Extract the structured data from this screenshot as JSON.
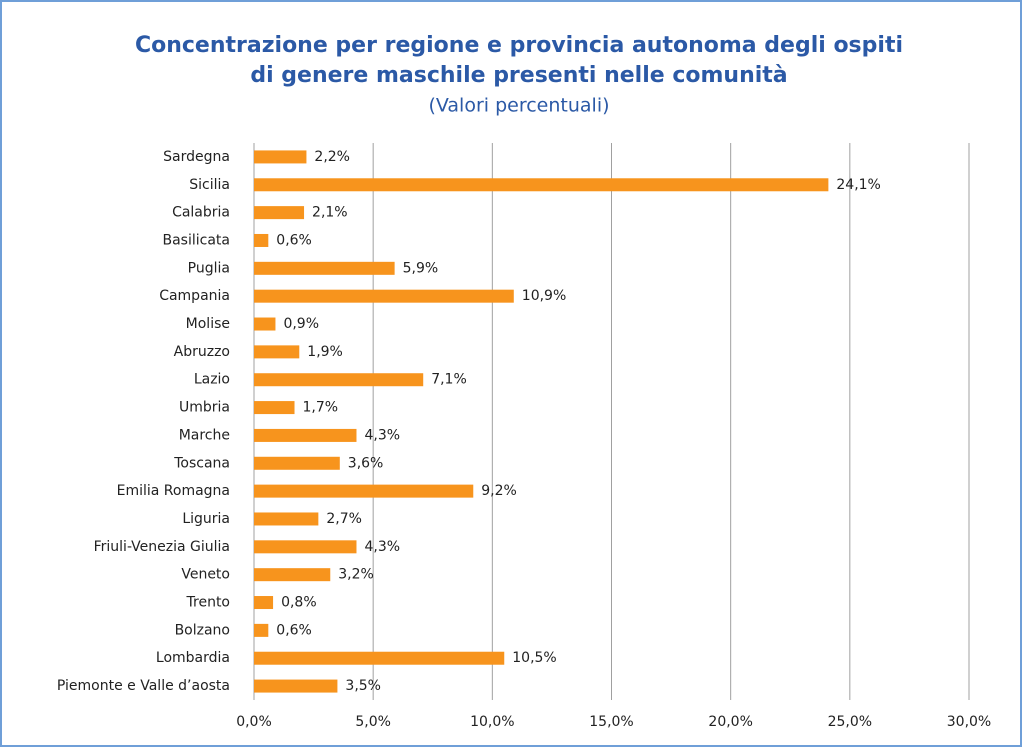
{
  "chart_data": {
    "type": "hbar",
    "title": [
      "Concentrazione per regione e provincia autonoma degli ospiti",
      "di genere maschile presenti nelle comunità"
    ],
    "subtitle": "(Valori percentuali)",
    "categories": [
      "Sardegna",
      "Sicilia",
      "Calabria",
      "Basilicata",
      "Puglia",
      "Campania",
      "Molise",
      "Abruzzo",
      "Lazio",
      "Umbria",
      "Marche",
      "Toscana",
      "Emilia Romagna",
      "Liguria",
      "Friuli-Venezia Giulia",
      "Veneto",
      "Trento",
      "Bolzano",
      "Lombardia",
      "Piemonte e Valle d’aosta"
    ],
    "values": [
      2.2,
      24.1,
      2.1,
      0.6,
      5.9,
      10.9,
      0.9,
      1.9,
      7.1,
      1.7,
      4.3,
      3.6,
      9.2,
      2.7,
      4.3,
      3.2,
      0.8,
      0.6,
      10.5,
      3.5
    ],
    "value_labels": [
      "2,2%",
      "24,1%",
      "2,1%",
      "0,6%",
      "5,9%",
      "10,9%",
      "0,9%",
      "1,9%",
      "7,1%",
      "1,7%",
      "4,3%",
      "3,6%",
      "9,2%",
      "2,7%",
      "4,3%",
      "3,2%",
      "0,8%",
      "0,6%",
      "10,5%",
      "3,5%"
    ],
    "color": "#f7941d",
    "xlim": [
      0,
      30
    ],
    "xticks": [
      {
        "value": 0,
        "label": "0,0%"
      },
      {
        "value": 5,
        "label": "5,0%"
      },
      {
        "value": 10,
        "label": "10,0%"
      },
      {
        "value": 15,
        "label": "15,0%"
      },
      {
        "value": 20,
        "label": "20,0%"
      },
      {
        "value": 25,
        "label": "25,0%"
      },
      {
        "value": 30,
        "label": "30,0%"
      }
    ],
    "grid": true
  }
}
